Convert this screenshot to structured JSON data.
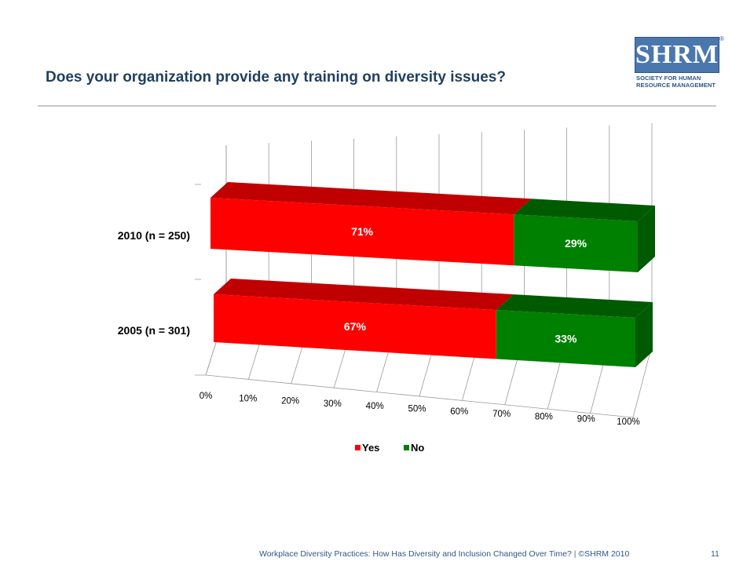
{
  "slide": {
    "title": "Does your organization provide any training on diversity issues?",
    "footer_text": "Workplace Diversity Practices: How Has Diversity and Inclusion Changed Over Time?",
    "footer_separator": "|",
    "footer_copyright": "©SHRM 2010",
    "page_number": "11"
  },
  "logo": {
    "text": "SHRM",
    "registered": "®",
    "subtitle_line1": "SOCIETY FOR HUMAN",
    "subtitle_line2": "RESOURCE MANAGEMENT"
  },
  "chart_data": {
    "type": "bar",
    "orientation": "horizontal",
    "stacked": "100%",
    "style": "3d",
    "categories": [
      "2010 (n = 250)",
      "2005 (n = 301)"
    ],
    "series": [
      {
        "name": "Yes",
        "values": [
          71,
          67
        ],
        "labels": [
          "71%",
          "67%"
        ],
        "color": "#ff0000",
        "top_color": "#c00000"
      },
      {
        "name": "No",
        "values": [
          29,
          33
        ],
        "labels": [
          "29%",
          "33%"
        ],
        "color": "#008000",
        "top_color": "#005a00"
      }
    ],
    "xlim": [
      0,
      100
    ],
    "x_ticks": [
      0,
      10,
      20,
      30,
      40,
      50,
      60,
      70,
      80,
      90,
      100
    ],
    "x_tick_labels": [
      "0%",
      "10%",
      "20%",
      "30%",
      "40%",
      "50%",
      "60%",
      "70%",
      "80%",
      "90%",
      "100%"
    ],
    "grid": true,
    "legend": "bottom",
    "title": "",
    "xlabel": "",
    "ylabel": ""
  }
}
